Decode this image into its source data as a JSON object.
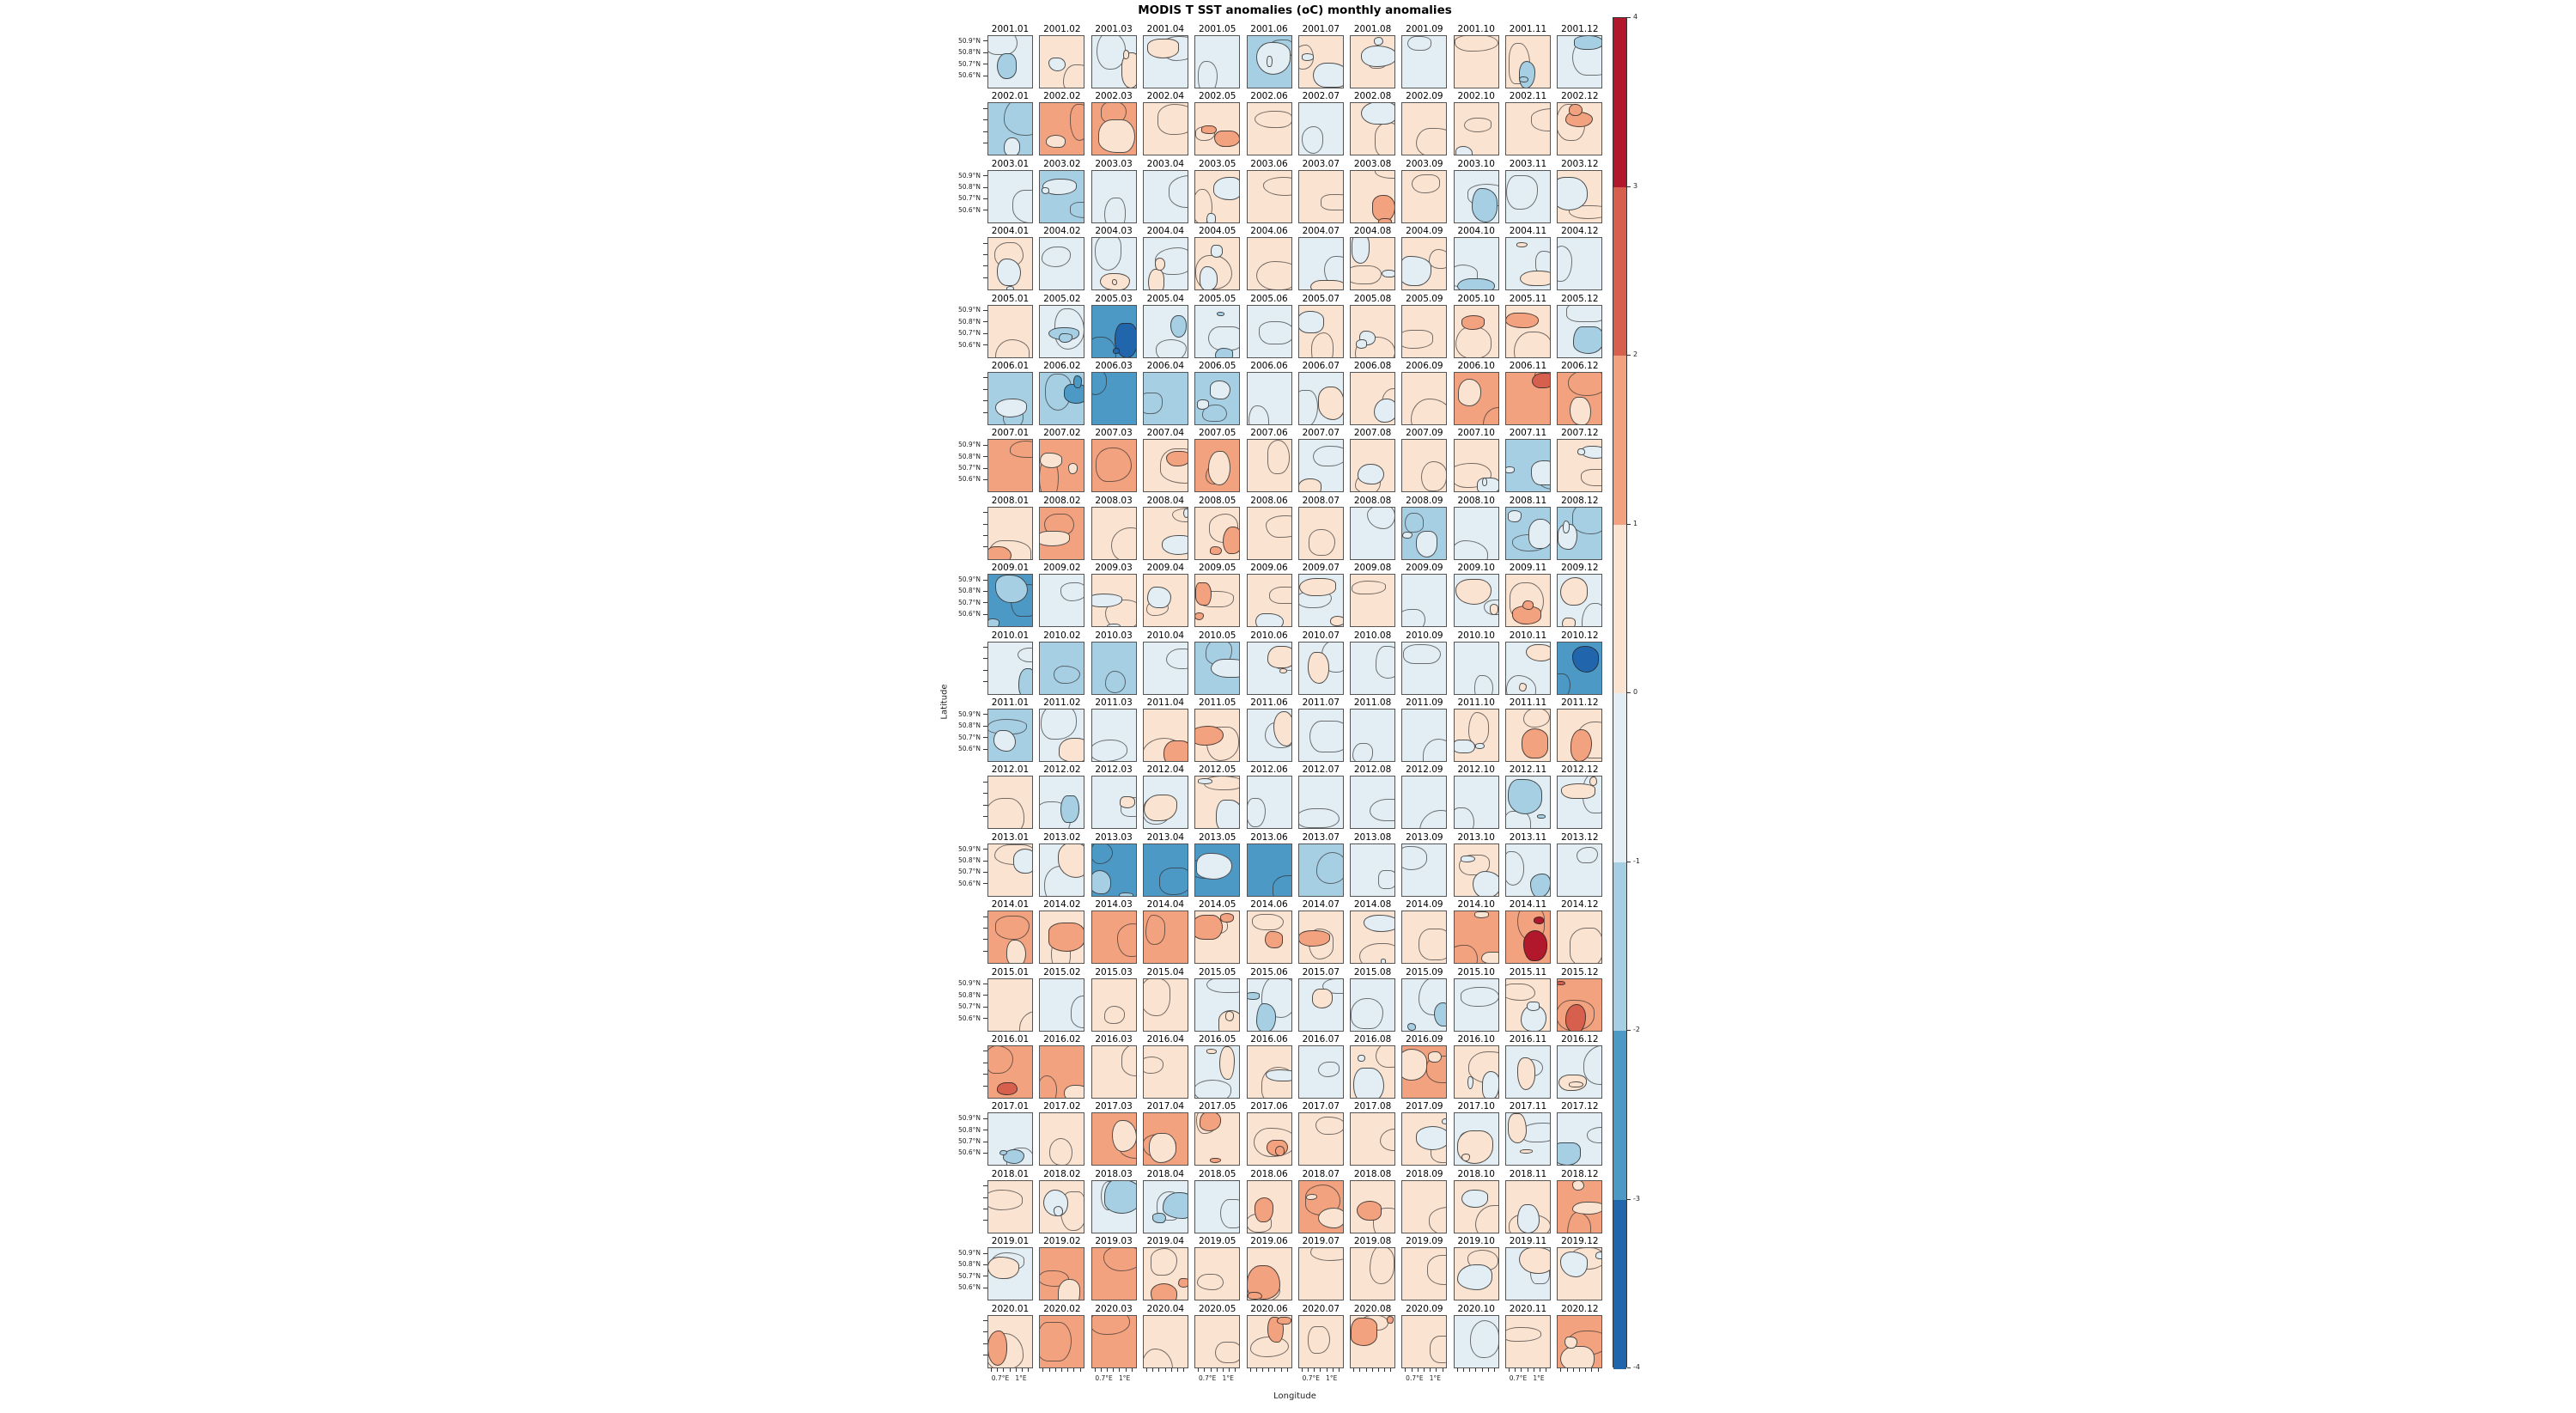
{
  "chart_data": {
    "type": "heatmap",
    "title": "MODIS T SST anomalies (oC) monthly anomalies",
    "xlabel": "Longitude",
    "ylabel": "Latitude",
    "grid": {
      "n_rows": 20,
      "n_cols": 12
    },
    "y_ticklabels": [
      "50.9°N",
      "50.8°N",
      "50.7°N",
      "50.6°N"
    ],
    "x_ticklabels": [
      "0.7°E",
      "1°E"
    ],
    "colorbar": {
      "range": [
        -4,
        4
      ],
      "ticks": [
        "4",
        "3",
        "2",
        "1",
        "0",
        "-1",
        "-2",
        "-3",
        "-4"
      ],
      "colors_top_to_bottom": [
        "#b2182b",
        "#d6604d",
        "#f2a27f",
        "#fbe3d1",
        "#e2edf4",
        "#a7cfe4",
        "#4d99c6",
        "#2166ac"
      ]
    },
    "bins": {
      "-3.5": "#2166ac",
      "-2.5": "#4d99c6",
      "-1.5": "#a7cfe4",
      "-0.5": "#e2edf4",
      "0.5": "#fbe3d1",
      "1.5": "#f2a27f",
      "2.5": "#d6604d",
      "3.5": "#b2182b"
    },
    "months": [
      "01",
      "02",
      "03",
      "04",
      "05",
      "06",
      "07",
      "08",
      "09",
      "10",
      "11",
      "12"
    ],
    "cell_value_meaning": "dominant and secondary SST anomaly bin midpoint (degC) per monthly panel",
    "rows": [
      {
        "year": "2001",
        "cells": [
          [
            -0.5,
            -1.5
          ],
          [
            0.5,
            -0.5
          ],
          [
            -0.5,
            0.5
          ],
          [
            -0.5,
            0.5
          ],
          [
            -0.5,
            null
          ],
          [
            -1.5,
            -0.5
          ],
          [
            0.5,
            -0.5
          ],
          [
            0.5,
            -0.5
          ],
          [
            -0.5,
            null
          ],
          [
            0.5,
            null
          ],
          [
            0.5,
            -1.5
          ],
          [
            -0.5,
            -1.5
          ]
        ]
      },
      {
        "year": "2002",
        "cells": [
          [
            -1.5,
            -0.5
          ],
          [
            1.5,
            0.5
          ],
          [
            1.5,
            0.5
          ],
          [
            0.5,
            null
          ],
          [
            0.5,
            1.5
          ],
          [
            0.5,
            null
          ],
          [
            -0.5,
            null
          ],
          [
            0.5,
            -0.5
          ],
          [
            0.5,
            null
          ],
          [
            0.5,
            -0.5
          ],
          [
            0.5,
            null
          ],
          [
            0.5,
            1.5
          ]
        ]
      },
      {
        "year": "2003",
        "cells": [
          [
            -0.5,
            null
          ],
          [
            -1.5,
            -0.5
          ],
          [
            -0.5,
            null
          ],
          [
            -0.5,
            null
          ],
          [
            0.5,
            -0.5
          ],
          [
            0.5,
            null
          ],
          [
            0.5,
            null
          ],
          [
            0.5,
            1.5
          ],
          [
            0.5,
            null
          ],
          [
            -0.5,
            -1.5
          ],
          [
            -0.5,
            null
          ],
          [
            0.5,
            -0.5
          ]
        ]
      },
      {
        "year": "2004",
        "cells": [
          [
            0.5,
            -0.5
          ],
          [
            -0.5,
            null
          ],
          [
            -0.5,
            0.5
          ],
          [
            -0.5,
            0.5
          ],
          [
            0.5,
            -0.5
          ],
          [
            0.5,
            null
          ],
          [
            -0.5,
            0.5
          ],
          [
            0.5,
            -0.5
          ],
          [
            0.5,
            -0.5
          ],
          [
            -0.5,
            -1.5
          ],
          [
            -0.5,
            0.5
          ],
          [
            -0.5,
            null
          ]
        ]
      },
      {
        "year": "2005",
        "cells": [
          [
            0.5,
            null
          ],
          [
            -0.5,
            -1.5
          ],
          [
            -2.5,
            -3.5
          ],
          [
            -0.5,
            -1.5
          ],
          [
            -0.5,
            -1.5
          ],
          [
            -0.5,
            null
          ],
          [
            0.5,
            -0.5
          ],
          [
            0.5,
            -0.5
          ],
          [
            0.5,
            null
          ],
          [
            0.5,
            1.5
          ],
          [
            0.5,
            1.5
          ],
          [
            -0.5,
            -1.5
          ]
        ]
      },
      {
        "year": "2006",
        "cells": [
          [
            -1.5,
            -0.5
          ],
          [
            -1.5,
            -2.5
          ],
          [
            -2.5,
            null
          ],
          [
            -1.5,
            null
          ],
          [
            -1.5,
            -0.5
          ],
          [
            -0.5,
            null
          ],
          [
            -0.5,
            0.5
          ],
          [
            0.5,
            -0.5
          ],
          [
            0.5,
            null
          ],
          [
            1.5,
            0.5
          ],
          [
            1.5,
            2.5
          ],
          [
            1.5,
            0.5
          ]
        ]
      },
      {
        "year": "2007",
        "cells": [
          [
            1.5,
            null
          ],
          [
            1.5,
            0.5
          ],
          [
            1.5,
            null
          ],
          [
            0.5,
            1.5
          ],
          [
            1.5,
            0.5
          ],
          [
            0.5,
            null
          ],
          [
            -0.5,
            0.5
          ],
          [
            0.5,
            -0.5
          ],
          [
            0.5,
            null
          ],
          [
            0.5,
            -0.5
          ],
          [
            -1.5,
            -0.5
          ],
          [
            0.5,
            -0.5
          ]
        ]
      },
      {
        "year": "2008",
        "cells": [
          [
            0.5,
            1.5
          ],
          [
            1.5,
            0.5
          ],
          [
            0.5,
            null
          ],
          [
            0.5,
            -0.5
          ],
          [
            0.5,
            1.5
          ],
          [
            0.5,
            null
          ],
          [
            0.5,
            null
          ],
          [
            -0.5,
            null
          ],
          [
            -1.5,
            -0.5
          ],
          [
            -0.5,
            null
          ],
          [
            -1.5,
            -0.5
          ],
          [
            -1.5,
            -0.5
          ]
        ]
      },
      {
        "year": "2009",
        "cells": [
          [
            -2.5,
            -1.5
          ],
          [
            -0.5,
            null
          ],
          [
            0.5,
            -0.5
          ],
          [
            0.5,
            -0.5
          ],
          [
            0.5,
            1.5
          ],
          [
            0.5,
            -0.5
          ],
          [
            -0.5,
            0.5
          ],
          [
            0.5,
            null
          ],
          [
            -0.5,
            null
          ],
          [
            -0.5,
            0.5
          ],
          [
            0.5,
            1.5
          ],
          [
            -0.5,
            0.5
          ]
        ]
      },
      {
        "year": "2010",
        "cells": [
          [
            -0.5,
            -1.5
          ],
          [
            -1.5,
            null
          ],
          [
            -1.5,
            null
          ],
          [
            -0.5,
            null
          ],
          [
            -1.5,
            -0.5
          ],
          [
            -0.5,
            0.5
          ],
          [
            -0.5,
            0.5
          ],
          [
            -0.5,
            null
          ],
          [
            -0.5,
            null
          ],
          [
            -0.5,
            null
          ],
          [
            -0.5,
            0.5
          ],
          [
            -2.5,
            -3.5
          ]
        ]
      },
      {
        "year": "2011",
        "cells": [
          [
            -1.5,
            -0.5
          ],
          [
            -0.5,
            0.5
          ],
          [
            -0.5,
            null
          ],
          [
            0.5,
            1.5
          ],
          [
            0.5,
            1.5
          ],
          [
            -0.5,
            0.5
          ],
          [
            -0.5,
            null
          ],
          [
            -0.5,
            null
          ],
          [
            -0.5,
            null
          ],
          [
            0.5,
            -0.5
          ],
          [
            0.5,
            1.5
          ],
          [
            0.5,
            1.5
          ]
        ]
      },
      {
        "year": "2012",
        "cells": [
          [
            0.5,
            null
          ],
          [
            -0.5,
            -1.5
          ],
          [
            -0.5,
            0.5
          ],
          [
            -0.5,
            0.5
          ],
          [
            0.5,
            -0.5
          ],
          [
            -0.5,
            null
          ],
          [
            -0.5,
            null
          ],
          [
            -0.5,
            null
          ],
          [
            -0.5,
            null
          ],
          [
            -0.5,
            null
          ],
          [
            -0.5,
            -1.5
          ],
          [
            -0.5,
            0.5
          ]
        ]
      },
      {
        "year": "2013",
        "cells": [
          [
            0.5,
            -0.5
          ],
          [
            -0.5,
            0.5
          ],
          [
            -2.5,
            -1.5
          ],
          [
            -2.5,
            null
          ],
          [
            -2.5,
            -0.5
          ],
          [
            -2.5,
            null
          ],
          [
            -1.5,
            null
          ],
          [
            -0.5,
            null
          ],
          [
            -0.5,
            null
          ],
          [
            0.5,
            -0.5
          ],
          [
            -0.5,
            -1.5
          ],
          [
            -0.5,
            null
          ]
        ]
      },
      {
        "year": "2014",
        "cells": [
          [
            1.5,
            0.5
          ],
          [
            0.5,
            1.5
          ],
          [
            1.5,
            null
          ],
          [
            1.5,
            null
          ],
          [
            0.5,
            1.5
          ],
          [
            0.5,
            1.5
          ],
          [
            0.5,
            1.5
          ],
          [
            0.5,
            -0.5
          ],
          [
            0.5,
            null
          ],
          [
            1.5,
            0.5
          ],
          [
            1.5,
            3.5
          ],
          [
            0.5,
            null
          ]
        ]
      },
      {
        "year": "2015",
        "cells": [
          [
            0.5,
            null
          ],
          [
            -0.5,
            null
          ],
          [
            0.5,
            null
          ],
          [
            0.5,
            null
          ],
          [
            -0.5,
            0.5
          ],
          [
            -0.5,
            -1.5
          ],
          [
            -0.5,
            0.5
          ],
          [
            -0.5,
            null
          ],
          [
            -0.5,
            -1.5
          ],
          [
            -0.5,
            null
          ],
          [
            0.5,
            -0.5
          ],
          [
            1.5,
            2.5
          ]
        ]
      },
      {
        "year": "2016",
        "cells": [
          [
            1.5,
            2.5
          ],
          [
            1.5,
            0.5
          ],
          [
            0.5,
            null
          ],
          [
            0.5,
            null
          ],
          [
            -0.5,
            0.5
          ],
          [
            0.5,
            -0.5
          ],
          [
            -0.5,
            null
          ],
          [
            0.5,
            -0.5
          ],
          [
            1.5,
            0.5
          ],
          [
            0.5,
            -0.5
          ],
          [
            -0.5,
            0.5
          ],
          [
            -0.5,
            0.5
          ]
        ]
      },
      {
        "year": "2017",
        "cells": [
          [
            -0.5,
            -1.5
          ],
          [
            0.5,
            null
          ],
          [
            1.5,
            0.5
          ],
          [
            1.5,
            0.5
          ],
          [
            0.5,
            1.5
          ],
          [
            0.5,
            1.5
          ],
          [
            0.5,
            null
          ],
          [
            0.5,
            null
          ],
          [
            0.5,
            -0.5
          ],
          [
            -0.5,
            0.5
          ],
          [
            -0.5,
            0.5
          ],
          [
            -0.5,
            -1.5
          ]
        ]
      },
      {
        "year": "2018",
        "cells": [
          [
            0.5,
            null
          ],
          [
            0.5,
            -0.5
          ],
          [
            -0.5,
            -1.5
          ],
          [
            -0.5,
            -1.5
          ],
          [
            -0.5,
            null
          ],
          [
            0.5,
            1.5
          ],
          [
            1.5,
            0.5
          ],
          [
            0.5,
            1.5
          ],
          [
            0.5,
            null
          ],
          [
            0.5,
            -0.5
          ],
          [
            0.5,
            -0.5
          ],
          [
            1.5,
            0.5
          ]
        ]
      },
      {
        "year": "2019",
        "cells": [
          [
            -0.5,
            0.5
          ],
          [
            1.5,
            0.5
          ],
          [
            1.5,
            null
          ],
          [
            0.5,
            1.5
          ],
          [
            0.5,
            null
          ],
          [
            0.5,
            1.5
          ],
          [
            0.5,
            null
          ],
          [
            0.5,
            null
          ],
          [
            0.5,
            null
          ],
          [
            0.5,
            -0.5
          ],
          [
            -0.5,
            0.5
          ],
          [
            0.5,
            -0.5
          ]
        ]
      },
      {
        "year": "2020",
        "cells": [
          [
            0.5,
            1.5
          ],
          [
            1.5,
            null
          ],
          [
            1.5,
            null
          ],
          [
            0.5,
            null
          ],
          [
            0.5,
            null
          ],
          [
            0.5,
            1.5
          ],
          [
            0.5,
            null
          ],
          [
            0.5,
            1.5
          ],
          [
            0.5,
            null
          ],
          [
            -0.5,
            null
          ],
          [
            0.5,
            null
          ],
          [
            1.5,
            0.5
          ]
        ]
      }
    ]
  }
}
